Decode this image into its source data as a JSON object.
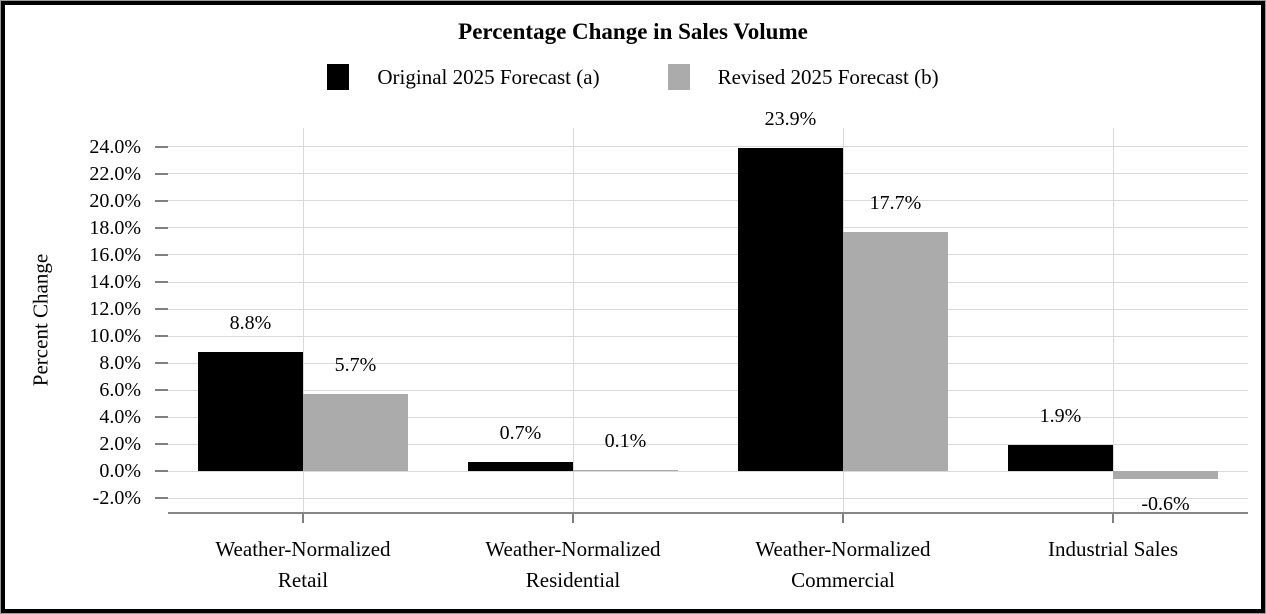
{
  "chart_data": {
    "type": "bar",
    "title": "Percentage Change in Sales Volume",
    "ylabel": "Percent Change",
    "xlabel": "",
    "categories": [
      "Weather-Normalized Retail",
      "Weather-Normalized Residential",
      "Weather-Normalized Commercial",
      "Industrial Sales"
    ],
    "series": [
      {
        "name": "Original 2025 Forecast (a)",
        "color": "#000000",
        "values": [
          8.8,
          0.7,
          23.9,
          1.9
        ],
        "data_labels": [
          "8.8%",
          "0.7%",
          "23.9%",
          "1.9%"
        ]
      },
      {
        "name": "Revised 2025 Forecast (b)",
        "color": "#ababab",
        "values": [
          5.7,
          0.1,
          17.7,
          -0.6
        ],
        "data_labels": [
          "5.7%",
          "0.1%",
          "17.7%",
          "-0.6%"
        ]
      }
    ],
    "y_tick_labels": [
      "24.0%",
      "22.0%",
      "20.0%",
      "18.0%",
      "16.0%",
      "14.0%",
      "12.0%",
      "10.0%",
      "8.0%",
      "6.0%",
      "4.0%",
      "2.0%",
      "0.0%",
      "-2.0%"
    ],
    "ylim": [
      -3.1,
      25.4
    ],
    "legend_position": "top-center",
    "grid": {
      "horizontal": true,
      "vertical_at_category_centers": true
    },
    "colors": {
      "gridline": "#d9d9d9",
      "axis_line": "#868686",
      "tick": "#808080",
      "text": "#000000",
      "frame_border": "#000000"
    }
  }
}
